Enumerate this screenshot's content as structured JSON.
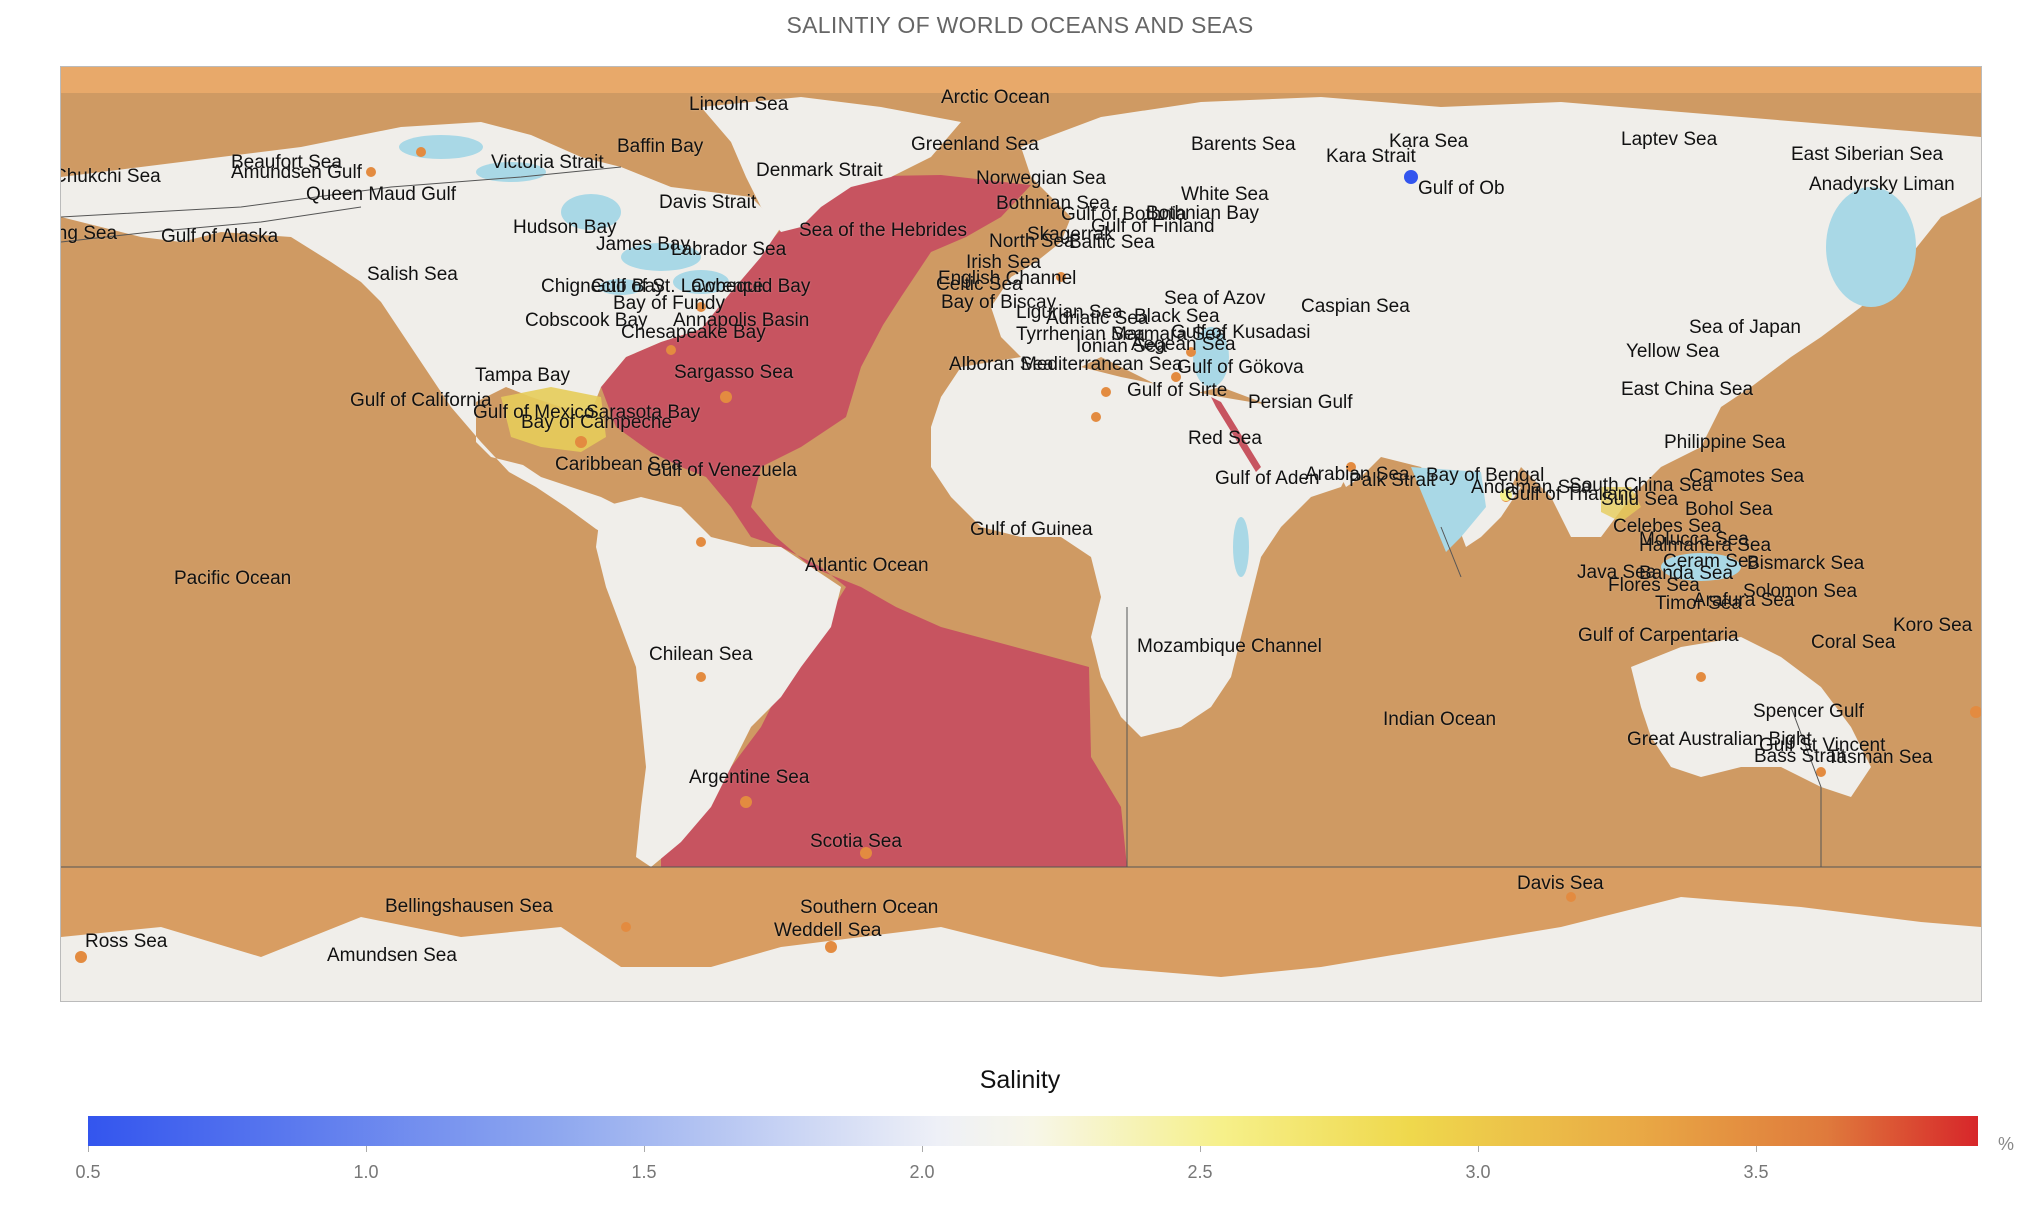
{
  "title": "SALINTIY OF WORLD OCEANS AND SEAS",
  "legend": {
    "title": "Salinity",
    "unit": "%",
    "ticks": [
      "0.5",
      "1.0",
      "1.5",
      "2.0",
      "2.5",
      "3.0",
      "3.5"
    ]
  },
  "colors": {
    "ocean": "#cf9a63",
    "atlantic": "#c75460",
    "land": "#f0eeea",
    "lakes": "#a9d8e6",
    "polar_band": "#e8a96a",
    "yellow_region": "#e6cc5a"
  },
  "map_labels": [
    "Arctic Ocean",
    "Lincoln Sea",
    "Greenland Sea",
    "Barents Sea",
    "Kara Sea",
    "Laptev Sea",
    "East Siberian Sea",
    "Kara Strait",
    "Gulf of Ob",
    "Anadyrsky Liman",
    "Baffin Bay",
    "Beaufort Sea",
    "Amundsen Gulf",
    "Victoria Strait",
    "Chukchi Sea",
    "Queen Maud Gulf",
    "Denmark Strait",
    "Davis Strait",
    "Norwegian Sea",
    "White Sea",
    "Bothnian Sea",
    "Gulf of Bothnia",
    "Bothnian Bay",
    "Gulf of Finland",
    "Skagerrak",
    "North Sea",
    "Baltic Sea",
    "Bering Sea",
    "Gulf of Alaska",
    "Hudson Bay",
    "James Bay",
    "Labrador Sea",
    "Sea of the Hebrides",
    "Irish Sea",
    "English Channel",
    "Celtic Sea",
    "Salish Sea",
    "Chignecto Bay",
    "Gulf of St. Lawrence",
    "Cobequid Bay",
    "Bay of Fundy",
    "Annapolis Basin",
    "Cobscook Bay",
    "Chesapeake Bay",
    "Bay of Biscay",
    "Ligurian Sea",
    "Adriatic Sea",
    "Black Sea",
    "Sea of Azov",
    "Caspian Sea",
    "Tyrrhenian Sea",
    "Marmara Sea",
    "Gulf of Kusadasi",
    "Ionian Sea",
    "Aegean Sea",
    "Alboran Sea",
    "Mediterranean Sea",
    "Gulf of Gökova",
    "Gulf of Sirte",
    "Sea of Japan",
    "Yellow Sea",
    "East China Sea",
    "Tampa Bay",
    "Sargasso Sea",
    "Gulf of California",
    "Gulf of Mexico",
    "Sarasota Bay",
    "Bay of Campeche",
    "Persian Gulf",
    "Red Sea",
    "Philippine Sea",
    "Caribbean Sea",
    "Gulf of Venezuela",
    "Gulf of Aden",
    "Arabian Sea",
    "Palk Strait",
    "Bay of Bengal",
    "Andaman Sea",
    "South China Sea",
    "Gulf of Thailand",
    "Camotes Sea",
    "Sulu Sea",
    "Bohol Sea",
    "Celebes Sea",
    "Molucca Sea",
    "Halmahera Sea",
    "Ceram Sea",
    "Bismarck Sea",
    "Java Sea",
    "Banda Sea",
    "Flores Sea",
    "Solomon Sea",
    "Timor Sea",
    "Arafura Sea",
    "Gulf of Guinea",
    "Atlantic Ocean",
    "Pacific Ocean",
    "Gulf of Carpentaria",
    "Koro Sea",
    "Coral Sea",
    "Mozambique Channel",
    "Chilean Sea",
    "Indian Ocean",
    "Spencer Gulf",
    "Great Australian Bight",
    "Gulf St Vincent",
    "Bass Strait",
    "Tasman Sea",
    "Argentine Sea",
    "Scotia Sea",
    "Davis Sea",
    "Bellingshausen Sea",
    "Southern Ocean",
    "Weddell Sea",
    "Ross Sea",
    "Amundsen Sea"
  ]
}
